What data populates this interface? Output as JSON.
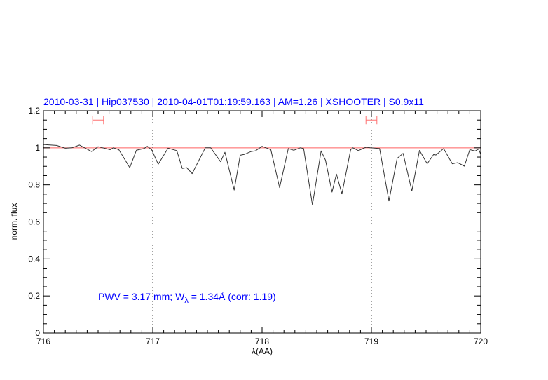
{
  "chart_data": {
    "type": "line",
    "title": "2010-03-31 | Hip037530 | 2010-04-01T01:19:59.163 | AM=1.26 | XSHOOTER | S0.9x11",
    "xlabel": "λ(AA)",
    "ylabel": "norm. flux",
    "xlim": [
      716,
      720
    ],
    "ylim": [
      0,
      1.2
    ],
    "xticks": [
      "716",
      "717",
      "718",
      "719",
      "720"
    ],
    "yticks": [
      "0",
      "0.2",
      "0.4",
      "0.6",
      "0.8",
      "1",
      "1.2"
    ],
    "x_minor_step": 0.1,
    "y_minor_step": 0.05,
    "annotation": {
      "prefix": "PWV  =  3.17  mm;  W",
      "sub": "λ",
      "suffix": "  =  1.34Å  (corr:  1.19)"
    },
    "reference_line": {
      "y": 1.0,
      "color": "#ff6060"
    },
    "dotted_lines_x": [
      717,
      719
    ],
    "error_bars": [
      {
        "x_from": 716.45,
        "x_to": 716.55,
        "y": 1.15,
        "color": "#ff7070"
      },
      {
        "x_from": 718.95,
        "x_to": 719.05,
        "y": 1.15,
        "color": "#ff7070"
      }
    ],
    "series": [
      {
        "color": "#333333",
        "x": [
          716.0,
          716.07,
          716.12,
          716.2,
          716.26,
          716.33,
          716.44,
          716.5,
          716.61,
          716.64,
          716.69,
          716.79,
          716.85,
          716.92,
          716.95,
          716.99,
          717.05,
          717.14,
          717.22,
          717.27,
          717.31,
          717.36,
          717.48,
          717.53,
          717.62,
          717.66,
          717.745,
          717.8,
          717.84,
          717.9,
          717.94,
          718.0,
          718.08,
          718.16,
          718.24,
          718.29,
          718.35,
          718.38,
          718.46,
          718.54,
          718.58,
          718.64,
          718.68,
          718.73,
          718.81,
          718.83,
          718.88,
          718.95,
          718.99,
          719.075,
          719.16,
          719.235,
          719.29,
          719.37,
          719.44,
          719.51,
          719.57,
          719.59,
          719.66,
          719.74,
          719.79,
          719.85,
          719.9,
          719.95,
          719.98,
          720.0
        ],
        "y": [
          1.018,
          1.015,
          1.013,
          0.998,
          1.0,
          1.015,
          0.98,
          1.006,
          0.99,
          1.0,
          0.99,
          0.893,
          0.987,
          0.996,
          1.008,
          0.99,
          0.911,
          0.998,
          0.985,
          0.889,
          0.893,
          0.861,
          1.0,
          1.0,
          0.925,
          0.976,
          0.772,
          0.96,
          0.965,
          0.98,
          0.984,
          1.008,
          0.99,
          0.785,
          0.996,
          0.987,
          1.0,
          0.996,
          0.692,
          0.983,
          0.933,
          0.761,
          0.858,
          0.751,
          0.99,
          1.0,
          0.985,
          1.003,
          1.0,
          0.996,
          0.713,
          0.943,
          0.97,
          0.767,
          0.986,
          0.914,
          0.965,
          0.961,
          0.996,
          0.914,
          0.92,
          0.901,
          0.99,
          0.983,
          0.994,
          0.965
        ]
      }
    ]
  }
}
